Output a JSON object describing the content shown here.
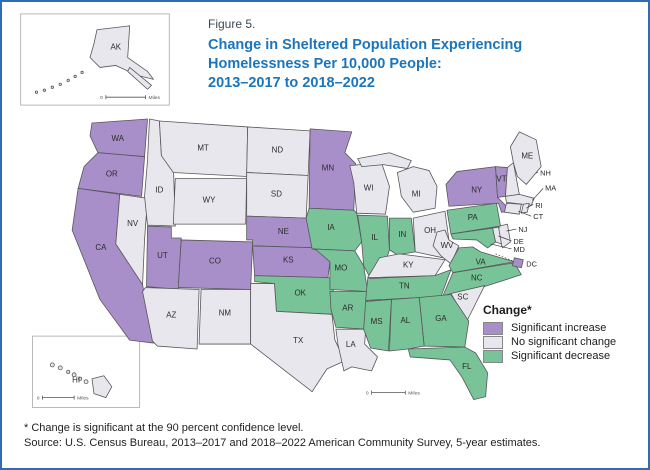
{
  "figure": {
    "label": "Figure 5.",
    "title_lines": [
      "Change in Sheltered Population Experiencing",
      "Homelessness Per 10,000 People:",
      "2013–2017 to 2018–2022"
    ],
    "title_color": "#1b75bc"
  },
  "legend": {
    "title": "Change*",
    "items": [
      {
        "key": "increase",
        "label": "Significant increase",
        "color": "#a98fc9"
      },
      {
        "key": "no_change",
        "label": "No significant change",
        "color": "#e9e7ee"
      },
      {
        "key": "decrease",
        "label": "Significant decrease",
        "color": "#79c399"
      }
    ]
  },
  "map": {
    "scale": {
      "zero": "0",
      "unit": "Miles"
    },
    "states": [
      {
        "abbr": "WA",
        "change": "increase"
      },
      {
        "abbr": "OR",
        "change": "increase"
      },
      {
        "abbr": "CA",
        "change": "increase"
      },
      {
        "abbr": "NV",
        "change": "no_change"
      },
      {
        "abbr": "ID",
        "change": "no_change"
      },
      {
        "abbr": "MT",
        "change": "no_change"
      },
      {
        "abbr": "WY",
        "change": "no_change"
      },
      {
        "abbr": "UT",
        "change": "increase"
      },
      {
        "abbr": "CO",
        "change": "increase"
      },
      {
        "abbr": "AZ",
        "change": "no_change"
      },
      {
        "abbr": "NM",
        "change": "no_change"
      },
      {
        "abbr": "ND",
        "change": "no_change"
      },
      {
        "abbr": "SD",
        "change": "no_change"
      },
      {
        "abbr": "NE",
        "change": "increase"
      },
      {
        "abbr": "KS",
        "change": "increase"
      },
      {
        "abbr": "OK",
        "change": "decrease"
      },
      {
        "abbr": "TX",
        "change": "no_change"
      },
      {
        "abbr": "MN",
        "change": "increase"
      },
      {
        "abbr": "IA",
        "change": "decrease"
      },
      {
        "abbr": "MO",
        "change": "decrease"
      },
      {
        "abbr": "AR",
        "change": "decrease"
      },
      {
        "abbr": "LA",
        "change": "no_change"
      },
      {
        "abbr": "WI",
        "change": "no_change"
      },
      {
        "abbr": "IL",
        "change": "decrease"
      },
      {
        "abbr": "IN",
        "change": "decrease"
      },
      {
        "abbr": "MI",
        "change": "no_change"
      },
      {
        "abbr": "OH",
        "change": "no_change"
      },
      {
        "abbr": "KY",
        "change": "no_change"
      },
      {
        "abbr": "TN",
        "change": "decrease"
      },
      {
        "abbr": "WV",
        "change": "no_change"
      },
      {
        "abbr": "VA",
        "change": "decrease"
      },
      {
        "abbr": "NC",
        "change": "decrease"
      },
      {
        "abbr": "SC",
        "change": "no_change"
      },
      {
        "abbr": "GA",
        "change": "decrease"
      },
      {
        "abbr": "AL",
        "change": "decrease"
      },
      {
        "abbr": "MS",
        "change": "decrease"
      },
      {
        "abbr": "FL",
        "change": "decrease"
      },
      {
        "abbr": "PA",
        "change": "decrease"
      },
      {
        "abbr": "NY",
        "change": "increase"
      },
      {
        "abbr": "VT",
        "change": "increase"
      },
      {
        "abbr": "NH",
        "change": "no_change"
      },
      {
        "abbr": "ME",
        "change": "no_change"
      },
      {
        "abbr": "MA",
        "change": "no_change"
      },
      {
        "abbr": "RI",
        "change": "no_change"
      },
      {
        "abbr": "CT",
        "change": "no_change"
      },
      {
        "abbr": "NJ",
        "change": "no_change"
      },
      {
        "abbr": "DE",
        "change": "no_change"
      },
      {
        "abbr": "MD",
        "change": "decrease"
      },
      {
        "abbr": "DC",
        "change": "increase"
      },
      {
        "abbr": "AK",
        "change": "no_change"
      },
      {
        "abbr": "HI",
        "change": "no_change"
      }
    ]
  },
  "notes": {
    "footnote": "* Change is significant at the 90 percent confidence level.",
    "source": "Source: U.S. Census Bureau, 2013–2017 and 2018–2022 American Community Survey, 5-year estimates."
  },
  "chart_data": {
    "type": "heatmap",
    "title": "Change in Sheltered Population Experiencing Homelessness Per 10,000 People: 2013–2017 to 2018–2022",
    "legend_title": "Change*",
    "categories": [
      "Significant increase",
      "No significant change",
      "Significant decrease"
    ],
    "significant_increase": [
      "WA",
      "OR",
      "CA",
      "UT",
      "CO",
      "NE",
      "KS",
      "MN",
      "NY",
      "VT",
      "DC"
    ],
    "no_significant_change": [
      "NV",
      "ID",
      "MT",
      "WY",
      "AZ",
      "NM",
      "ND",
      "SD",
      "TX",
      "LA",
      "WI",
      "MI",
      "OH",
      "KY",
      "WV",
      "SC",
      "NH",
      "ME",
      "MA",
      "RI",
      "CT",
      "NJ",
      "DE",
      "AK",
      "HI"
    ],
    "significant_decrease": [
      "OK",
      "IA",
      "MO",
      "AR",
      "IL",
      "IN",
      "TN",
      "VA",
      "NC",
      "GA",
      "AL",
      "MS",
      "FL",
      "PA",
      "MD"
    ]
  }
}
